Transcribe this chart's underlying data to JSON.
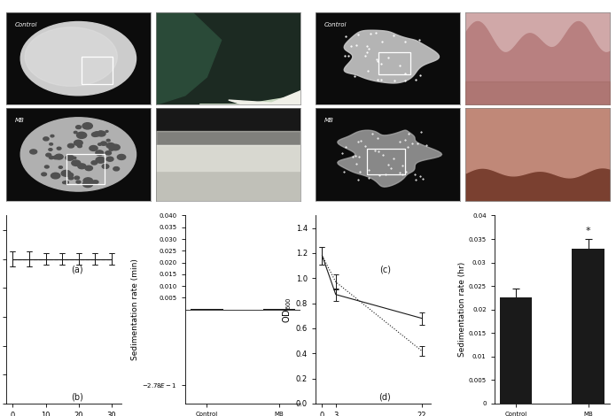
{
  "panel_a_label": "(a)",
  "panel_b_label": "(b)",
  "panel_c_label": "(c)",
  "panel_d_label": "(d)",
  "b_line_time": [
    0,
    5,
    10,
    15,
    20,
    25,
    30
  ],
  "b_line_control": [
    1.0,
    1.0,
    1.0,
    1.0,
    1.0,
    1.0,
    1.0
  ],
  "b_line_mb": [
    1.0,
    1.0,
    1.0,
    1.0,
    1.0,
    1.0,
    1.0
  ],
  "b_line_control_err": [
    0.05,
    0.05,
    0.04,
    0.04,
    0.04,
    0.04,
    0.04
  ],
  "b_line_mb_err": [
    0.05,
    0.05,
    0.04,
    0.04,
    0.04,
    0.04,
    0.04
  ],
  "b_bar_categories": [
    "Control",
    "MB"
  ],
  "b_bar_values": [
    0.0002,
    0.0002
  ],
  "d_line_time": [
    0,
    3,
    22
  ],
  "d_line_control": [
    1.18,
    0.87,
    0.68
  ],
  "d_line_mb": [
    1.18,
    0.97,
    0.42
  ],
  "d_line_control_err": [
    0.07,
    0.05,
    0.05
  ],
  "d_line_mb_err": [
    0.07,
    0.06,
    0.04
  ],
  "d_bar_categories": [
    "Control",
    "MB"
  ],
  "d_bar_values": [
    0.0225,
    0.033
  ],
  "d_bar_errors": [
    0.002,
    0.002
  ],
  "color_black": "#1a1a1a",
  "bg_color": "#ffffff"
}
